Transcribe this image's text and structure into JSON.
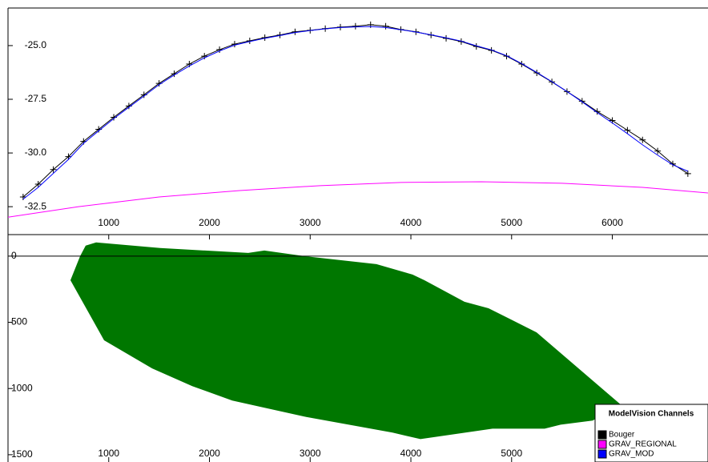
{
  "chart_data": [
    {
      "type": "line",
      "xlim": [
        0,
        6950
      ],
      "xticks": [
        1000,
        2000,
        3000,
        4000,
        5000,
        6000
      ],
      "ylim": [
        -33.8,
        -23.25
      ],
      "yticks": [
        {
          "value": -25,
          "label": "-25.0"
        },
        {
          "value": -27.5,
          "label": "-27.5"
        },
        {
          "value": -30,
          "label": "-30.0"
        },
        {
          "value": -32.5,
          "label": "-32.5"
        }
      ],
      "series": [
        {
          "name": "Bouger",
          "color": "#000000",
          "markers": true,
          "x": [
            150,
            300,
            450,
            600,
            750,
            900,
            1050,
            1200,
            1350,
            1500,
            1650,
            1800,
            1950,
            2100,
            2250,
            2400,
            2550,
            2700,
            2850,
            3000,
            3150,
            3300,
            3450,
            3600,
            3750,
            3900,
            4050,
            4200,
            4350,
            4500,
            4650,
            4800,
            4950,
            5100,
            5250,
            5400,
            5550,
            5700,
            5850,
            6000,
            6150,
            6300,
            6450,
            6600,
            6750
          ],
          "values": [
            -32.05,
            -31.45,
            -30.77,
            -30.17,
            -29.46,
            -28.9,
            -28.34,
            -27.81,
            -27.29,
            -26.76,
            -26.31,
            -25.86,
            -25.49,
            -25.19,
            -24.93,
            -24.78,
            -24.63,
            -24.51,
            -24.36,
            -24.29,
            -24.21,
            -24.14,
            -24.1,
            -24.03,
            -24.1,
            -24.25,
            -24.36,
            -24.51,
            -24.66,
            -24.81,
            -25.04,
            -25.22,
            -25.49,
            -25.86,
            -26.27,
            -26.69,
            -27.14,
            -27.59,
            -28.07,
            -28.49,
            -28.94,
            -29.39,
            -29.91,
            -30.51,
            -30.96
          ]
        },
        {
          "name": "GRAV_REGIONAL",
          "color": "#ff00ff",
          "markers": false,
          "x": [
            0,
            700,
            1500,
            2300,
            3100,
            3900,
            4700,
            5500,
            6300,
            6950
          ],
          "values": [
            -32.99,
            -32.5,
            -32.05,
            -31.75,
            -31.52,
            -31.37,
            -31.34,
            -31.41,
            -31.6,
            -31.86
          ]
        },
        {
          "name": "GRAV_MOD",
          "color": "#0000ff",
          "markers": false,
          "x": [
            150,
            300,
            450,
            600,
            750,
            900,
            1050,
            1200,
            1350,
            1500,
            1650,
            1800,
            1950,
            2100,
            2250,
            2400,
            2550,
            2700,
            2850,
            3000,
            3150,
            3300,
            3450,
            3600,
            3750,
            3900,
            4050,
            4200,
            4350,
            4500,
            4650,
            4800,
            4950,
            5100,
            5250,
            5400,
            5550,
            5700,
            5850,
            6000,
            6150,
            6300,
            6450,
            6600,
            6750
          ],
          "values": [
            -32.15,
            -31.6,
            -30.95,
            -30.3,
            -29.55,
            -28.97,
            -28.4,
            -27.87,
            -27.35,
            -26.82,
            -26.37,
            -25.95,
            -25.57,
            -25.25,
            -24.98,
            -24.81,
            -24.66,
            -24.53,
            -24.39,
            -24.3,
            -24.22,
            -24.16,
            -24.13,
            -24.11,
            -24.16,
            -24.26,
            -24.37,
            -24.5,
            -24.64,
            -24.79,
            -25.01,
            -25.2,
            -25.47,
            -25.84,
            -26.25,
            -26.68,
            -27.14,
            -27.62,
            -28.12,
            -28.6,
            -29.1,
            -29.62,
            -30.1,
            -30.55,
            -30.85
          ]
        }
      ],
      "legend": {
        "title": "ModelVision Channels",
        "corner": "bottom-right"
      }
    },
    {
      "type": "section",
      "xlim": [
        0,
        6950
      ],
      "xticks": [
        1000,
        2000,
        3000,
        4000,
        5000,
        6000
      ],
      "ylim": [
        1555,
        -120
      ],
      "yticks": [
        0,
        500,
        1000,
        1500
      ],
      "color": "#007700",
      "x": [
        771,
        875,
        1511,
        2385,
        2545,
        2942,
        3658,
        4016,
        4135,
        4532,
        4771,
        5248,
        6083,
        5805,
        5487,
        5328,
        4811,
        4095,
        3817,
        2942,
        2226,
        1829,
        1431,
        954,
        620,
        716
      ],
      "values": [
        -79,
        -103,
        -61,
        -24,
        -42,
        0,
        61,
        139,
        182,
        345,
        394,
        576,
        1121,
        1242,
        1273,
        1303,
        1303,
        1382,
        1333,
        1212,
        1091,
        982,
        848,
        636,
        182,
        0
      ]
    }
  ]
}
